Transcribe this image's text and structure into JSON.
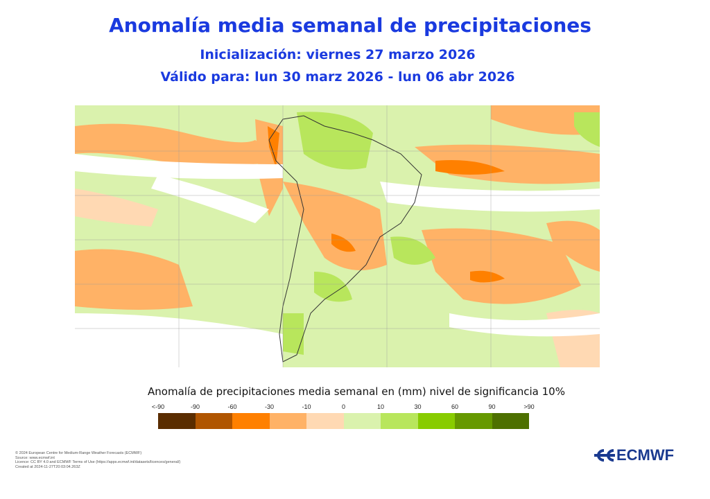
{
  "header": {
    "title": "Anomalía media semanal de precipitaciones",
    "init": "Inicialización: viernes 27 marzo 2026",
    "valid": "Válido para: lun 30 marz 2026 - lun 06 abr 2026"
  },
  "legend": {
    "title": "Anomalía de precipitaciones media semanal en (mm) nivel de significancia 10%",
    "ticks": [
      "<-90",
      "-90",
      "-60",
      "-30",
      "-10",
      "0",
      "10",
      "30",
      "60",
      "90",
      ">90"
    ],
    "colors": [
      "#5a2d00",
      "#b05500",
      "#ff8000",
      "#ffb266",
      "#ffd9b3",
      "#daf2ad",
      "#b8e65c",
      "#88cc00",
      "#669900",
      "#4d7000"
    ]
  },
  "footer": {
    "lines": [
      "© 2024 European Centre for Medium-Range Weather Forecasts (ECMWF)",
      "Source: www.ecmwf.int",
      "Licence: CC BY 4.0 and ECMWF Terms of Use (https://apps.ecmwf.int/datasets/licences/general/)",
      "Created at 2024-11-27T20:03:04.263Z"
    ]
  },
  "logo": {
    "text": "ECMWF"
  }
}
